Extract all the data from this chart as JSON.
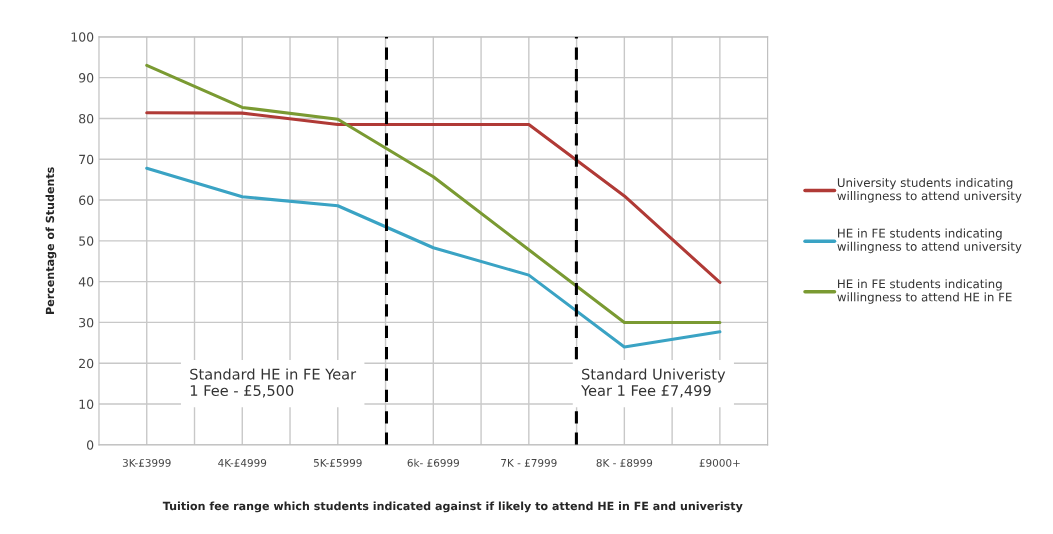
{
  "chart_data": {
    "type": "line",
    "xlabel": "Tuition fee range which students indicated against if likely to attend HE in FE and univeristy",
    "ylabel": "Percentage of Students",
    "categories": [
      "3K-£3999",
      "4K-£4999",
      "5K-£5999",
      "6k- £6999",
      "7K - £7999",
      "8K - £8999",
      "£9000+"
    ],
    "series": [
      {
        "name": "University students indicating willingness to attend university",
        "color": "#b03a36",
        "values": [
          81.4,
          81.3,
          78.5,
          78.5,
          78.5,
          61,
          39.8
        ]
      },
      {
        "name": "HE in FE students indicating willingness to attend university",
        "color": "#3aa3c4",
        "values": [
          67.8,
          60.8,
          58.6,
          48.3,
          41.6,
          24,
          27.7
        ]
      },
      {
        "name": "HE in FE students indicating willingness to attend HE in FE",
        "color": "#7a9a32",
        "values": [
          93,
          82.7,
          79.8,
          65.7,
          47.8,
          30,
          30
        ]
      }
    ],
    "ylim": [
      0,
      100
    ],
    "yticks": [
      0,
      10,
      20,
      30,
      40,
      50,
      60,
      70,
      80,
      90,
      100
    ],
    "grid": true,
    "legend": "right",
    "marker": "none",
    "line_style": "solid",
    "annotations": [
      "Standard HE in FE Year\n1 Fee - £5,500",
      "Standard Univeristy\nYear 1 Fee £7,499"
    ]
  }
}
